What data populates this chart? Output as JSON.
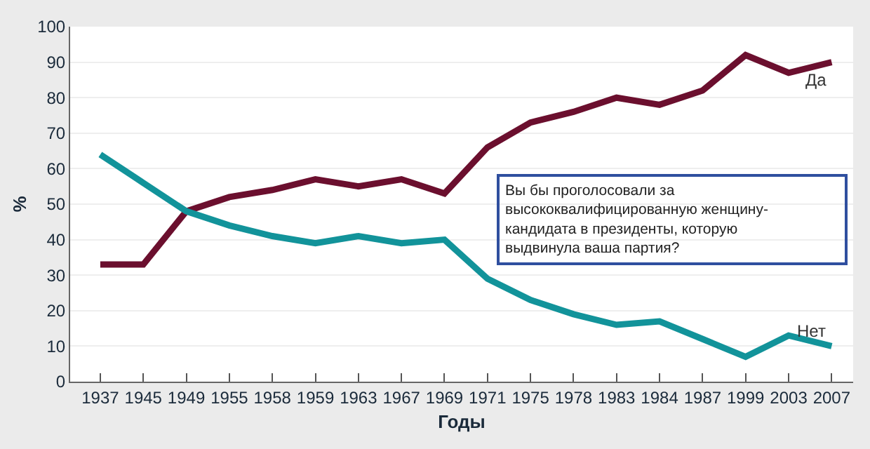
{
  "chart_data": {
    "type": "line",
    "xlabel": "Годы",
    "ylabel": "%",
    "categories": [
      "1937",
      "1945",
      "1949",
      "1955",
      "1958",
      "1959",
      "1963",
      "1967",
      "1969",
      "1971",
      "1975",
      "1978",
      "1983",
      "1984",
      "1987",
      "1999",
      "2003",
      "2007"
    ],
    "series": [
      {
        "name": "Да",
        "color": "#6b0f2e",
        "values": [
          33,
          33,
          48,
          52,
          54,
          57,
          55,
          57,
          53,
          66,
          73,
          76,
          80,
          78,
          82,
          92,
          87,
          90
        ]
      },
      {
        "name": "Нет",
        "color": "#12939a",
        "values": [
          64,
          56,
          48,
          44,
          41,
          39,
          41,
          39,
          40,
          29,
          23,
          19,
          16,
          17,
          12,
          7,
          13,
          10
        ]
      }
    ],
    "ylim": [
      0,
      100
    ],
    "yticks": [
      0,
      10,
      20,
      30,
      40,
      50,
      60,
      70,
      80,
      90,
      100
    ],
    "grid": "y",
    "legend": false,
    "marker": "none",
    "line_style": "solid",
    "annotations": [
      "Вы бы проголосовали за высококвалифицированную женщину-кандидата в президенты, которую выдвинула ваша партия?"
    ]
  }
}
